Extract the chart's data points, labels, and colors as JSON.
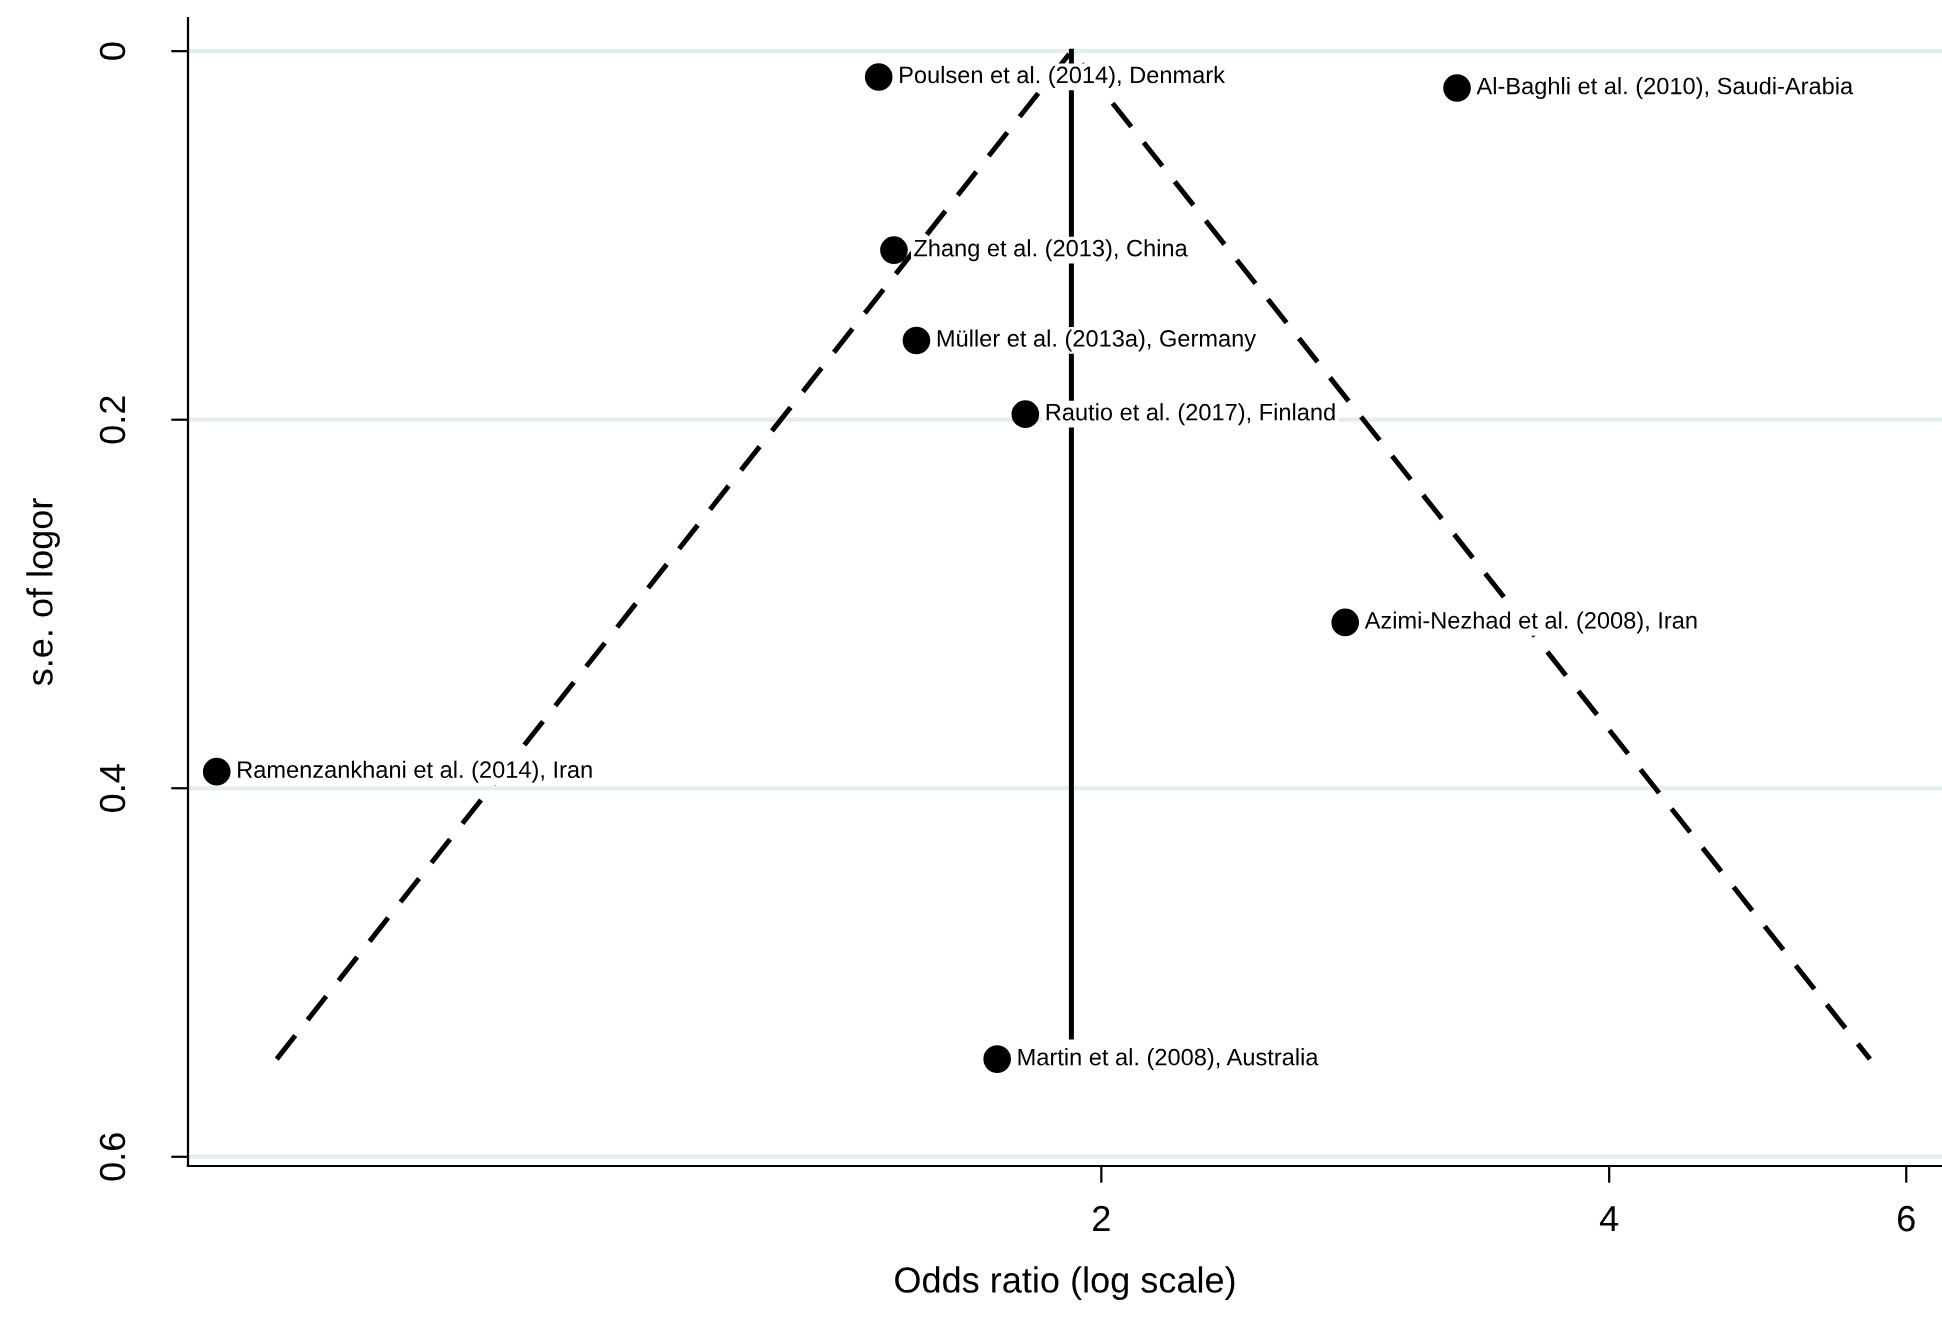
{
  "chart_data": {
    "type": "scatter",
    "xlabel": "Odds ratio (log scale)",
    "ylabel": "s.e. of logor",
    "log": "x",
    "xlim": [
      0.575,
      6.3
    ],
    "xticks": [
      2,
      4,
      6
    ],
    "ylim": [
      0.605,
      -0.018
    ],
    "yticks": [
      0,
      0.2,
      0.4,
      0.6
    ],
    "grid": "y",
    "series": [
      {
        "color": "#000000",
        "marker": "circle",
        "x": [
          1.476,
          3.25,
          1.507,
          1.554,
          1.803,
          2.79,
          0.598,
          1.735
        ],
        "values": [
          0.014,
          0.02,
          0.108,
          0.157,
          0.197,
          0.31,
          0.391,
          0.547
        ]
      },
      {
        "type": "line",
        "color": "#000000",
        "line_style": "dashed",
        "marker": "none",
        "x": [
          0.649,
          1.92,
          5.71
        ],
        "values": [
          0.547,
          0,
          0.547
        ]
      },
      {
        "type": "line",
        "color": "#000000",
        "line_style": "solid",
        "marker": "none",
        "x": [
          1.92,
          1.92
        ],
        "values": [
          0,
          0.535
        ]
      }
    ],
    "annotations": [
      {
        "text": "Poulsen et al. (2014), Denmark",
        "x": 1.476,
        "y": 0.014
      },
      {
        "text": "Al-Baghli et al. (2010), Saudi-Arabia",
        "x": 3.25,
        "y": 0.02
      },
      {
        "text": "Zhang et al. (2013), China",
        "x": 1.507,
        "y": 0.108
      },
      {
        "text": "Müller et al. (2013a), Germany",
        "x": 1.554,
        "y": 0.157
      },
      {
        "text": "Rautio et al. (2017), Finland",
        "x": 1.803,
        "y": 0.197
      },
      {
        "text": "Azimi-Nezhad et al. (2008), Iran",
        "x": 2.79,
        "y": 0.31
      },
      {
        "text": "Ramenzankhani et al. (2014), Iran",
        "x": 0.598,
        "y": 0.391
      },
      {
        "text": "Martin et al. (2008), Australia",
        "x": 1.735,
        "y": 0.547
      }
    ]
  }
}
